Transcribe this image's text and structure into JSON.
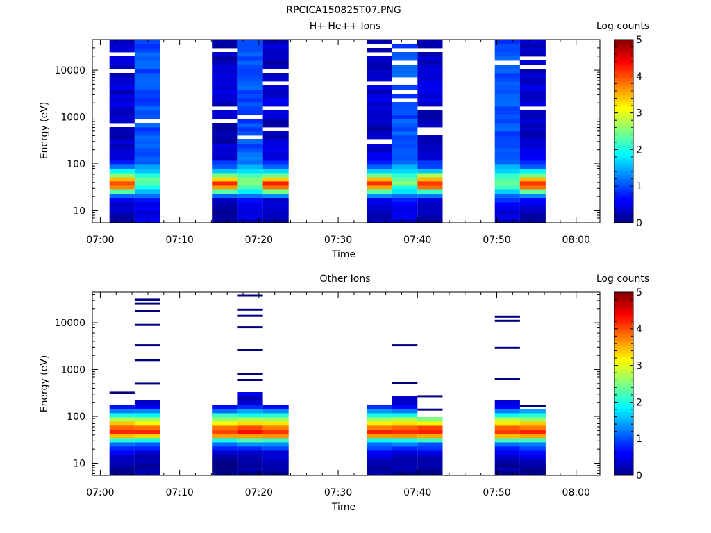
{
  "figure_title": "RPCICA150825T07.PNG",
  "chart_data": [
    {
      "type": "heatmap",
      "title": "H+ He++ Ions",
      "xlabel": "Time",
      "ylabel": "Energy (eV)",
      "colorbar_label": "Log counts",
      "colorbar_ticks": [
        "0",
        "1",
        "2",
        "3",
        "4",
        "5"
      ],
      "clim": [
        0,
        5
      ],
      "xlim": [
        "06:59",
        "08:03"
      ],
      "x_ticks": [
        "07:00",
        "07:10",
        "07:20",
        "07:30",
        "07:40",
        "07:50",
        "08:00"
      ],
      "ylim": [
        5.5,
        45000
      ],
      "y_scale": "log",
      "y_ticks": [
        "10",
        "100",
        "1000",
        "10000"
      ],
      "blocks": [
        {
          "start": "07:01:10",
          "end": "07:04:20",
          "profile": "A"
        },
        {
          "start": "07:04:20",
          "end": "07:07:35",
          "profile": "B"
        },
        {
          "start": "07:14:10",
          "end": "07:17:20",
          "profile": "A"
        },
        {
          "start": "07:17:20",
          "end": "07:20:30",
          "profile": "B"
        },
        {
          "start": "07:20:30",
          "end": "07:23:45",
          "profile": "A"
        },
        {
          "start": "07:33:35",
          "end": "07:36:45",
          "profile": "A"
        },
        {
          "start": "07:36:45",
          "end": "07:40:00",
          "profile": "B"
        },
        {
          "start": "07:40:00",
          "end": "07:43:10",
          "profile": "A"
        },
        {
          "start": "07:49:45",
          "end": "07:52:55",
          "profile": "B"
        },
        {
          "start": "07:52:55",
          "end": "07:56:10",
          "profile": "A"
        }
      ],
      "profiles": {
        "A": {
          "energies": [
            8,
            12,
            18,
            24,
            30,
            36,
            42,
            50,
            60,
            75,
            95,
            130,
            200,
            400,
            900,
            2000,
            5000,
            12000,
            30000
          ],
          "values": [
            0.2,
            0.3,
            0.5,
            1.8,
            3.6,
            4.2,
            3.9,
            3.2,
            2.4,
            1.5,
            0.9,
            0.5,
            0.4,
            0.3,
            0.3,
            0.4,
            0.4,
            0.3,
            0.3
          ]
        },
        "B": {
          "energies": [
            8,
            12,
            18,
            24,
            30,
            40,
            55,
            75,
            100,
            150,
            300,
            600,
            1500,
            4000,
            10000,
            25000
          ],
          "values": [
            0.4,
            0.5,
            0.9,
            1.5,
            2.0,
            2.5,
            2.2,
            1.6,
            1.2,
            1.1,
            1.0,
            1.0,
            1.0,
            1.0,
            1.0,
            1.0
          ]
        }
      }
    },
    {
      "type": "heatmap",
      "title": "Other Ions",
      "xlabel": "Time",
      "ylabel": "Energy (eV)",
      "colorbar_label": "Log counts",
      "colorbar_ticks": [
        "0",
        "1",
        "2",
        "3",
        "4",
        "5"
      ],
      "clim": [
        0,
        5
      ],
      "xlim": [
        "06:59",
        "08:03"
      ],
      "x_ticks": [
        "07:00",
        "07:10",
        "07:20",
        "07:30",
        "07:40",
        "07:50",
        "08:00"
      ],
      "ylim": [
        5.5,
        45000
      ],
      "y_scale": "log",
      "y_ticks": [
        "10",
        "100",
        "1000",
        "10000"
      ],
      "blocks": [
        {
          "start": "07:01:10",
          "end": "07:04:20",
          "profile": "C",
          "ymax": 170
        },
        {
          "start": "07:04:20",
          "end": "07:07:35",
          "profile": "C",
          "ymax": 200
        },
        {
          "start": "07:14:10",
          "end": "07:17:20",
          "profile": "C",
          "ymax": 170
        },
        {
          "start": "07:17:20",
          "end": "07:20:30",
          "profile": "C",
          "ymax": 300
        },
        {
          "start": "07:20:30",
          "end": "07:23:45",
          "profile": "C",
          "ymax": 170
        },
        {
          "start": "07:33:35",
          "end": "07:36:45",
          "profile": "C",
          "ymax": 170
        },
        {
          "start": "07:36:45",
          "end": "07:40:00",
          "profile": "C",
          "ymax": 260
        },
        {
          "start": "07:40:00",
          "end": "07:43:10",
          "profile": "C",
          "ymax": 90
        },
        {
          "start": "07:49:45",
          "end": "07:52:55",
          "profile": "C",
          "ymax": 230
        },
        {
          "start": "07:52:55",
          "end": "07:56:10",
          "profile": "C",
          "ymax": 140
        }
      ],
      "profiles": {
        "C": {
          "energies": [
            8,
            12,
            18,
            26,
            30,
            34,
            40,
            50,
            60,
            75,
            95,
            120,
            150,
            180
          ],
          "values": [
            0.1,
            0.2,
            0.6,
            1.2,
            1.8,
            2.6,
            3.8,
            4.3,
            3.8,
            3.1,
            2.4,
            1.6,
            0.9,
            0.4
          ]
        }
      },
      "sparse_lines": [
        {
          "start": "07:01:10",
          "end": "07:04:20",
          "energies": [
            320
          ]
        },
        {
          "start": "07:04:20",
          "end": "07:07:35",
          "energies": [
            500,
            1600,
            3300,
            9000,
            18000,
            26000,
            31000
          ]
        },
        {
          "start": "07:17:20",
          "end": "07:20:30",
          "energies": [
            600,
            800,
            2600,
            8000,
            14000,
            19000,
            38000
          ]
        },
        {
          "start": "07:36:45",
          "end": "07:40:00",
          "energies": [
            520,
            3300
          ]
        },
        {
          "start": "07:40:00",
          "end": "07:43:10",
          "energies": [
            140,
            270
          ]
        },
        {
          "start": "07:49:45",
          "end": "07:52:55",
          "energies": [
            620,
            2900,
            11000,
            13500
          ]
        },
        {
          "start": "07:52:55",
          "end": "07:56:10",
          "energies": [
            170
          ]
        }
      ]
    }
  ]
}
